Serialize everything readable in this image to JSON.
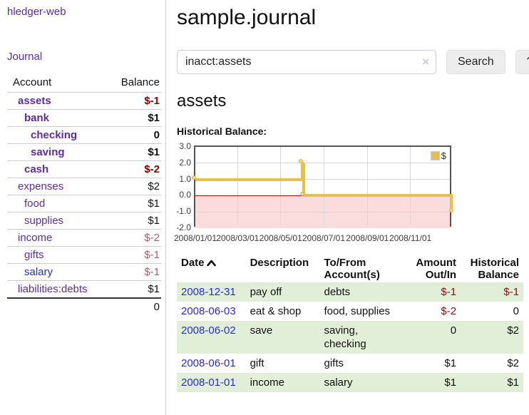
{
  "sidebar": {
    "app_title": "hledger-web",
    "journal_link": "Journal",
    "accounts_table": {
      "headers": [
        "Account",
        "Balance"
      ],
      "rows": [
        {
          "label": "assets",
          "depth": 1,
          "bold": true,
          "label_color": "purple",
          "balance": "$-1",
          "balance_color": "dark-red"
        },
        {
          "label": "bank",
          "depth": 2,
          "bold": true,
          "label_color": "purple",
          "balance": "$1",
          "balance_color": "black"
        },
        {
          "label": "checking",
          "depth": 3,
          "bold": true,
          "label_color": "purple",
          "balance": "0",
          "balance_color": "black"
        },
        {
          "label": "saving",
          "depth": 3,
          "bold": true,
          "label_color": "purple",
          "balance": "$1",
          "balance_color": "black"
        },
        {
          "label": "cash",
          "depth": 2,
          "bold": true,
          "label_color": "purple",
          "balance": "$-2",
          "balance_color": "dark-red"
        },
        {
          "label": "expenses",
          "depth": 1,
          "bold": false,
          "label_color": "purple",
          "balance": "$2",
          "balance_color": "black"
        },
        {
          "label": "food",
          "depth": 2,
          "bold": false,
          "label_color": "purple",
          "balance": "$1",
          "balance_color": "black"
        },
        {
          "label": "supplies",
          "depth": 2,
          "bold": false,
          "label_color": "purple",
          "balance": "$1",
          "balance_color": "black"
        },
        {
          "label": "income",
          "depth": 1,
          "bold": false,
          "label_color": "purple",
          "balance": "$-2",
          "balance_color": "rose"
        },
        {
          "label": "gifts",
          "depth": 2,
          "bold": false,
          "label_color": "purple",
          "balance": "$-1",
          "balance_color": "rose"
        },
        {
          "label": "salary",
          "depth": 2,
          "bold": false,
          "label_color": "blue",
          "balance": "$-1",
          "balance_color": "rose"
        },
        {
          "label": "liabilities:debts",
          "depth": 1,
          "bold": false,
          "label_color": "purple",
          "balance": "$1",
          "balance_color": "black"
        }
      ],
      "total": "0"
    }
  },
  "main": {
    "title": "sample.journal",
    "search": {
      "value": "inacct:assets",
      "clear_icon": "×",
      "search_button": "Search",
      "help_button": "?"
    },
    "account_heading": "assets",
    "chart_label": "Historical Balance:"
  },
  "chart_data": {
    "type": "line",
    "title": "Historical Balance",
    "step": true,
    "series": [
      {
        "name": "$",
        "color": "#e6c049",
        "points": [
          [
            "2008-01-01",
            1
          ],
          [
            "2008-06-01",
            2
          ],
          [
            "2008-06-03",
            0
          ],
          [
            "2008-12-31",
            -1
          ]
        ]
      }
    ],
    "x_range": [
      "2008-01-01",
      "2008-12-31"
    ],
    "x_ticks": [
      "2008/01/01",
      "2008/03/01",
      "2008/05/01",
      "2008/07/01",
      "2008/09/01",
      "2008/11/01"
    ],
    "y_ticks": [
      3.0,
      2.0,
      1.0,
      0.0,
      -1.0,
      -2.0
    ],
    "ylim": [
      -2,
      3
    ],
    "grid": true,
    "negative_region_color": "#fbdcdc",
    "zero_line_color": "#9b1313",
    "legend": {
      "label": "$",
      "position": "top-right"
    }
  },
  "register_table": {
    "headers": [
      {
        "lines": [
          "Date"
        ],
        "sorted": "ascending"
      },
      {
        "lines": [
          "Description"
        ]
      },
      {
        "lines": [
          "To/From",
          "Account(s)"
        ]
      },
      {
        "lines": [
          "Amount",
          "Out/In"
        ],
        "align": "right"
      },
      {
        "lines": [
          "Historical",
          "Balance"
        ],
        "align": "right"
      }
    ],
    "rows": [
      {
        "date": "2008-12-31",
        "description": "pay off",
        "accounts": "debts",
        "amount": "$-1",
        "amount_negative": true,
        "balance": "$-1",
        "balance_negative": true
      },
      {
        "date": "2008-06-03",
        "description": "eat & shop",
        "accounts": "food, supplies",
        "amount": "$-2",
        "amount_negative": true,
        "balance": "0",
        "balance_negative": false
      },
      {
        "date": "2008-06-02",
        "description": "save",
        "accounts": "saving, checking",
        "amount": "0",
        "amount_negative": false,
        "balance": "$2",
        "balance_negative": false
      },
      {
        "date": "2008-06-01",
        "description": "gift",
        "accounts": "gifts",
        "amount": "$1",
        "amount_negative": false,
        "balance": "$2",
        "balance_negative": false
      },
      {
        "date": "2008-01-01",
        "description": "income",
        "accounts": "salary",
        "amount": "$1",
        "amount_negative": false,
        "balance": "$1",
        "balance_negative": false
      }
    ]
  },
  "colors": {
    "link_purple": "#5b2da1",
    "link_blue": "#2b2bd5",
    "negative_strong": "#8b0000",
    "negative_soft": "#ab5e66",
    "table_negative": "#8b1111",
    "row_green": "#e2efd8",
    "chart_line_yellow": "#e6c049",
    "chart_negative_region": "#fbdcdc",
    "chart_zero_line": "#9b1313"
  }
}
